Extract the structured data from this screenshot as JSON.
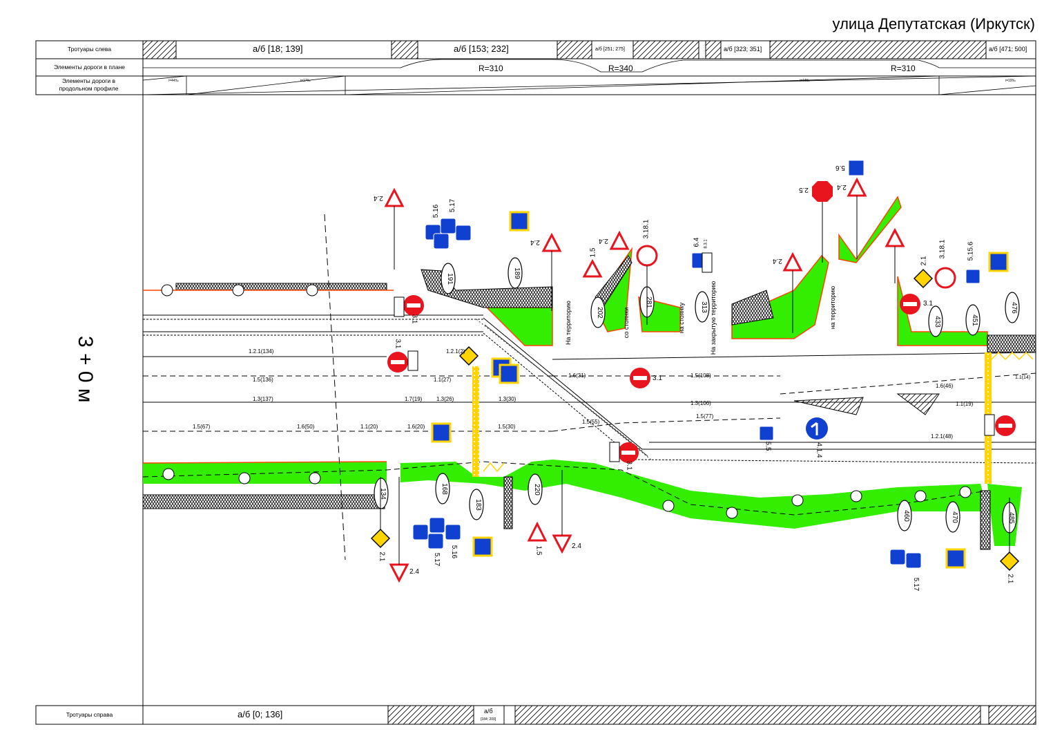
{
  "title": "улица Депутатская (Иркутск)",
  "rows": {
    "left_sidewalks": "Тротуары слева",
    "plan": "Элементы дороги в плане",
    "profile": "Элементы дороги в продольном профиле",
    "right_sidewalks": "Тротуары справа"
  },
  "left_sidewalk_values": [
    "а/б [18; 139]",
    "а/б [153; 232]",
    "а/б [251; 275]",
    "а/б [323; 351]",
    "а/б [471; 500]"
  ],
  "right_sidewalk_values": [
    "а/б [0; 136]",
    "а/б",
    "[184; 200]"
  ],
  "plan_curves": [
    "R=310",
    "R=340",
    "R=310"
  ],
  "profile_slopes": [
    "i=44‰",
    "i=17‰",
    "i=44‰",
    "i=19‰"
  ],
  "station_label": "3 + 0 м",
  "markings": [
    "1.2.1(134)",
    "1.5(136)",
    "1.3(137)",
    "1.5(67)",
    "1.6(50)",
    "1.1(20)",
    "1.6(20)",
    "1.7(19)",
    "1.3(26)",
    "1.1(27)",
    "1.3(30)",
    "1.5(30)",
    "1.6(31)",
    "1.5(108)",
    "1.3(106)",
    "1.5(77)",
    "1.5(55)",
    "1.2.1(48)",
    "1.1(19)",
    "1.6(46)",
    "1.1(14)",
    "1.2.1(2)"
  ],
  "markers_top": [
    "191",
    "189",
    "202",
    "281",
    "313",
    "433",
    "451",
    "476"
  ],
  "markers_bottom": [
    "134",
    "168",
    "183",
    "220",
    "460",
    "470",
    "485"
  ],
  "sign_labels": [
    "2.4",
    "5.16",
    "5.17",
    "2.4",
    "1.5",
    "2.4",
    "3.18.1",
    "6.4",
    "8.3.1",
    "2.4",
    "2.5",
    "2.4",
    "5.6",
    "2.1",
    "3.18.1",
    "5.15.6",
    "3.1",
    "3.1",
    "3.1",
    "2.1",
    "2.4",
    "5.17",
    "5.16",
    "1.5",
    "2.4",
    "5.17",
    "2.1",
    "5.5",
    "4.1.4",
    "3.1",
    "3.1"
  ],
  "vertical_texts": [
    "На территорию",
    "со стоянки",
    "на стоянку",
    "На закрытую территорию",
    "на территорию"
  ],
  "colors": {
    "green": "#33ee00",
    "orange": "#ff4400",
    "yellow": "#ffd400",
    "blue": "#1040d0",
    "red": "#e8141e"
  }
}
